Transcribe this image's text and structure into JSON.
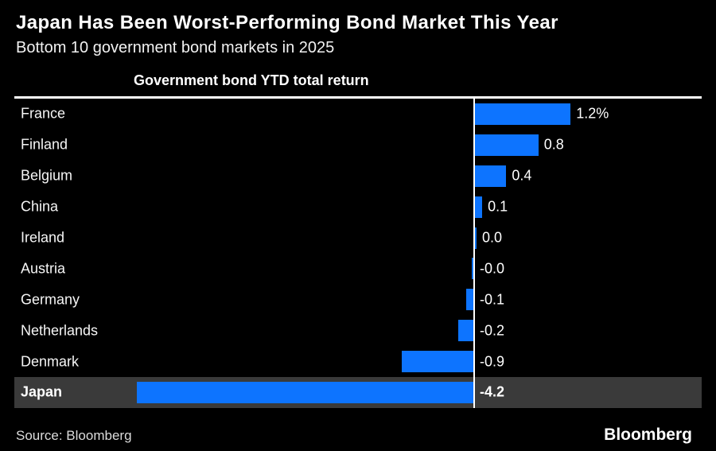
{
  "header": {
    "title": "Japan Has Been Worst-Performing Bond Market This Year",
    "subtitle": "Bottom 10 government bond markets in 2025"
  },
  "chart_data": {
    "type": "bar",
    "orientation": "horizontal",
    "axis_title": "Government bond YTD total return",
    "value_unit": "percent YTD total return",
    "xlim": [
      -4.5,
      2.9
    ],
    "grid": false,
    "legend": "none",
    "bar_color": "#0d74ff",
    "zero_line_color": "#ffffff",
    "highlight_row_bg": "#3a3a3a",
    "categories": [
      "France",
      "Finland",
      "Belgium",
      "China",
      "Ireland",
      "Austria",
      "Germany",
      "Netherlands",
      "Denmark",
      "Japan"
    ],
    "values": [
      1.2,
      0.8,
      0.4,
      0.1,
      0.0,
      -0.0,
      -0.1,
      -0.2,
      -0.9,
      -4.2
    ],
    "rows": [
      {
        "label": "France",
        "value": 1.2,
        "sign": 1,
        "display": "1.2%",
        "highlight": false
      },
      {
        "label": "Finland",
        "value": 0.8,
        "sign": 1,
        "display": "0.8",
        "highlight": false
      },
      {
        "label": "Belgium",
        "value": 0.4,
        "sign": 1,
        "display": "0.4",
        "highlight": false
      },
      {
        "label": "China",
        "value": 0.1,
        "sign": 1,
        "display": "0.1",
        "highlight": false
      },
      {
        "label": "Ireland",
        "value": 0.0,
        "sign": 1,
        "display": "0.0",
        "highlight": false
      },
      {
        "label": "Austria",
        "value": 0.0,
        "sign": -1,
        "display": "-0.0",
        "highlight": false
      },
      {
        "label": "Germany",
        "value": -0.1,
        "sign": -1,
        "display": "-0.1",
        "highlight": false
      },
      {
        "label": "Netherlands",
        "value": -0.2,
        "sign": -1,
        "display": "-0.2",
        "highlight": false
      },
      {
        "label": "Denmark",
        "value": -0.9,
        "sign": -1,
        "display": "-0.9",
        "highlight": false
      },
      {
        "label": "Japan",
        "value": -4.2,
        "sign": -1,
        "display": "-4.2",
        "highlight": true
      }
    ]
  },
  "footer": {
    "source": "Source: Bloomberg",
    "brand": "Bloomberg"
  }
}
